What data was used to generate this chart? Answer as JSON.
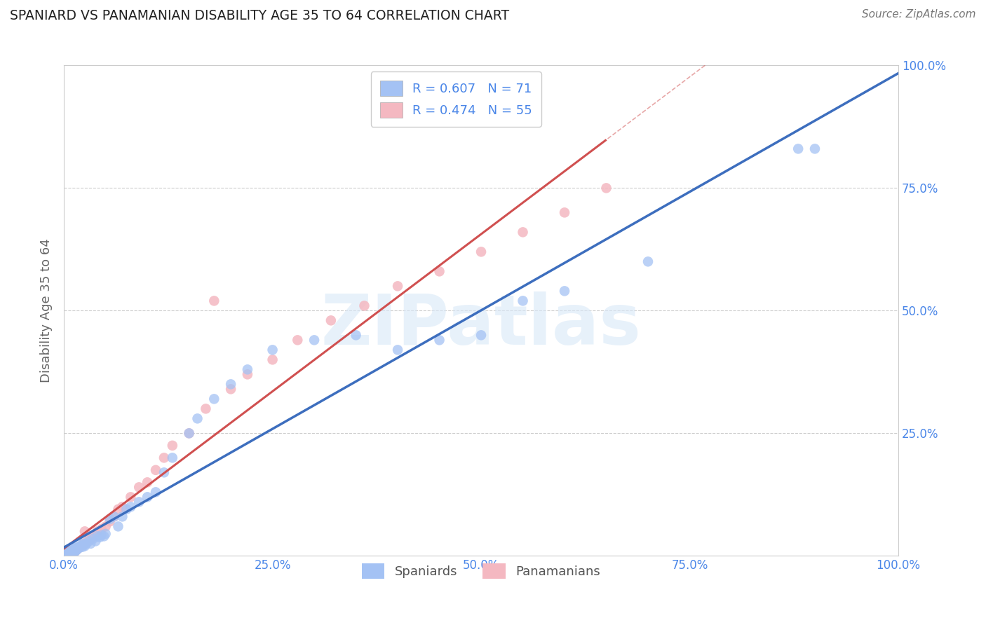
{
  "title": "SPANIARD VS PANAMANIAN DISABILITY AGE 35 TO 64 CORRELATION CHART",
  "source": "Source: ZipAtlas.com",
  "ylabel": "Disability Age 35 to 64",
  "watermark": "ZIPatlas",
  "spaniard_R": 0.607,
  "spaniard_N": 71,
  "panamanian_R": 0.474,
  "panamanian_N": 55,
  "spaniard_color": "#a4c2f4",
  "panamanian_color": "#f4b8c1",
  "spaniard_line_color": "#3d6ebe",
  "panamanian_line_color": "#d05050",
  "grid_color": "#cccccc",
  "title_color": "#222222",
  "tick_color": "#4a86e8",
  "ylabel_color": "#666666",
  "xlim": [
    0.0,
    1.0
  ],
  "ylim": [
    0.0,
    1.0
  ],
  "xticks": [
    0.0,
    0.25,
    0.5,
    0.75,
    1.0
  ],
  "yticks": [
    0.0,
    0.25,
    0.5,
    0.75,
    1.0
  ],
  "xticklabels": [
    "0.0%",
    "25.0%",
    "50.0%",
    "75.0%",
    "100.0%"
  ],
  "yticklabels": [
    "",
    "25.0%",
    "50.0%",
    "75.0%",
    "100.0%"
  ],
  "legend_R_label_blue": "R = 0.607   N = 71",
  "legend_R_label_pink": "R = 0.474   N = 55",
  "legend_bottom_labels": [
    "Spaniards",
    "Panamanians"
  ],
  "background": "#ffffff",
  "spaniard_x": [
    0.003,
    0.004,
    0.005,
    0.005,
    0.006,
    0.006,
    0.007,
    0.007,
    0.008,
    0.008,
    0.009,
    0.009,
    0.01,
    0.01,
    0.011,
    0.011,
    0.012,
    0.012,
    0.013,
    0.013,
    0.014,
    0.014,
    0.015,
    0.015,
    0.016,
    0.017,
    0.018,
    0.019,
    0.02,
    0.021,
    0.022,
    0.023,
    0.024,
    0.025,
    0.027,
    0.03,
    0.032,
    0.035,
    0.038,
    0.04,
    0.043,
    0.045,
    0.048,
    0.05,
    0.055,
    0.06,
    0.065,
    0.07,
    0.075,
    0.08,
    0.09,
    0.1,
    0.11,
    0.12,
    0.13,
    0.15,
    0.16,
    0.18,
    0.2,
    0.22,
    0.25,
    0.3,
    0.35,
    0.4,
    0.45,
    0.5,
    0.55,
    0.6,
    0.7,
    0.88,
    0.9
  ],
  "spaniard_y": [
    0.003,
    0.004,
    0.005,
    0.006,
    0.007,
    0.008,
    0.005,
    0.009,
    0.006,
    0.01,
    0.007,
    0.011,
    0.008,
    0.012,
    0.009,
    0.013,
    0.01,
    0.014,
    0.008,
    0.015,
    0.01,
    0.016,
    0.012,
    0.018,
    0.014,
    0.015,
    0.016,
    0.018,
    0.02,
    0.022,
    0.018,
    0.025,
    0.022,
    0.02,
    0.025,
    0.03,
    0.025,
    0.035,
    0.03,
    0.04,
    0.038,
    0.042,
    0.04,
    0.045,
    0.075,
    0.08,
    0.06,
    0.08,
    0.095,
    0.1,
    0.11,
    0.12,
    0.13,
    0.17,
    0.2,
    0.25,
    0.28,
    0.32,
    0.35,
    0.38,
    0.42,
    0.44,
    0.45,
    0.42,
    0.44,
    0.45,
    0.52,
    0.54,
    0.6,
    0.83,
    0.83
  ],
  "panamanian_x": [
    0.003,
    0.004,
    0.005,
    0.005,
    0.006,
    0.007,
    0.008,
    0.008,
    0.009,
    0.01,
    0.011,
    0.011,
    0.012,
    0.013,
    0.014,
    0.015,
    0.016,
    0.017,
    0.018,
    0.02,
    0.022,
    0.024,
    0.025,
    0.027,
    0.03,
    0.033,
    0.037,
    0.04,
    0.045,
    0.05,
    0.055,
    0.06,
    0.065,
    0.07,
    0.08,
    0.09,
    0.1,
    0.11,
    0.12,
    0.13,
    0.15,
    0.17,
    0.18,
    0.2,
    0.22,
    0.25,
    0.28,
    0.32,
    0.36,
    0.4,
    0.45,
    0.5,
    0.55,
    0.6,
    0.65
  ],
  "panamanian_y": [
    0.003,
    0.004,
    0.005,
    0.006,
    0.007,
    0.008,
    0.006,
    0.009,
    0.007,
    0.01,
    0.008,
    0.011,
    0.009,
    0.012,
    0.01,
    0.013,
    0.014,
    0.015,
    0.017,
    0.02,
    0.022,
    0.025,
    0.05,
    0.028,
    0.032,
    0.035,
    0.04,
    0.05,
    0.055,
    0.06,
    0.07,
    0.08,
    0.095,
    0.1,
    0.12,
    0.14,
    0.15,
    0.175,
    0.2,
    0.225,
    0.25,
    0.3,
    0.52,
    0.34,
    0.37,
    0.4,
    0.44,
    0.48,
    0.51,
    0.55,
    0.58,
    0.62,
    0.66,
    0.7,
    0.75
  ]
}
